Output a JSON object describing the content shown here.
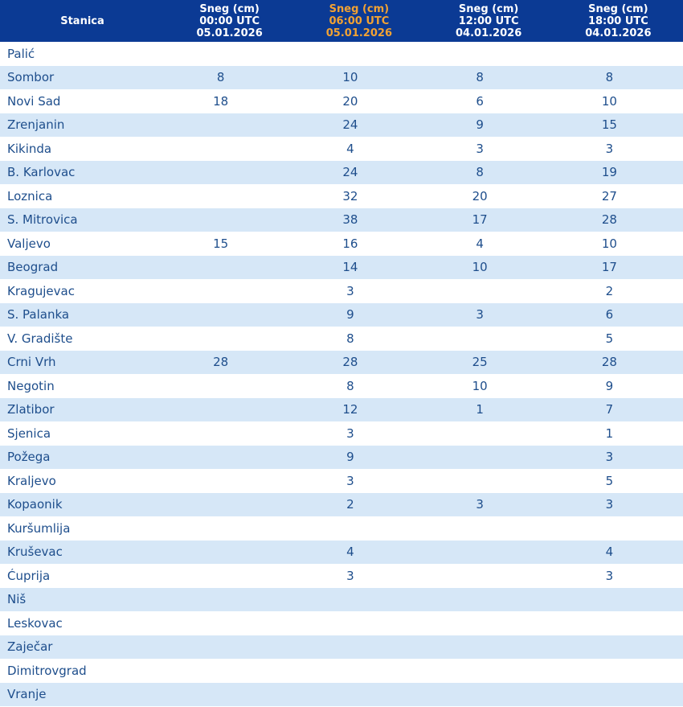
{
  "chart_data": {
    "type": "table",
    "units": "cm",
    "station_header": "Stanica",
    "highlight_color": "#f2a233",
    "header_background": "#0b3a94",
    "alt_row_color": "#d6e7f7",
    "text_color": "#1e4e8c",
    "columns": [
      {
        "label": "Sneg (cm)",
        "time": "00:00 UTC",
        "date": "05.01.2026",
        "highlighted": false
      },
      {
        "label": "Sneg (cm)",
        "time": "06:00 UTC",
        "date": "05.01.2026",
        "highlighted": true
      },
      {
        "label": "Sneg (cm)",
        "time": "12:00 UTC",
        "date": "04.01.2026",
        "highlighted": false
      },
      {
        "label": "Sneg (cm)",
        "time": "18:00 UTC",
        "date": "04.01.2026",
        "highlighted": false
      }
    ],
    "rows": [
      {
        "station": "Palić",
        "values": [
          null,
          null,
          null,
          null
        ]
      },
      {
        "station": "Sombor",
        "values": [
          8,
          10,
          8,
          8
        ]
      },
      {
        "station": "Novi Sad",
        "values": [
          18,
          20,
          6,
          10
        ]
      },
      {
        "station": "Zrenjanin",
        "values": [
          null,
          24,
          9,
          15
        ]
      },
      {
        "station": "Kikinda",
        "values": [
          null,
          4,
          3,
          3
        ]
      },
      {
        "station": "B. Karlovac",
        "values": [
          null,
          24,
          8,
          19
        ]
      },
      {
        "station": "Loznica",
        "values": [
          null,
          32,
          20,
          27
        ]
      },
      {
        "station": "S. Mitrovica",
        "values": [
          null,
          38,
          17,
          28
        ]
      },
      {
        "station": "Valjevo",
        "values": [
          15,
          16,
          4,
          10
        ]
      },
      {
        "station": "Beograd",
        "values": [
          null,
          14,
          10,
          17
        ]
      },
      {
        "station": "Kragujevac",
        "values": [
          null,
          3,
          null,
          2
        ]
      },
      {
        "station": "S. Palanka",
        "values": [
          null,
          9,
          3,
          6
        ]
      },
      {
        "station": "V. Gradište",
        "values": [
          null,
          8,
          null,
          5
        ]
      },
      {
        "station": "Crni Vrh",
        "values": [
          28,
          28,
          25,
          28
        ]
      },
      {
        "station": "Negotin",
        "values": [
          null,
          8,
          10,
          9
        ]
      },
      {
        "station": "Zlatibor",
        "values": [
          null,
          12,
          1,
          7
        ]
      },
      {
        "station": "Sjenica",
        "values": [
          null,
          3,
          null,
          1
        ]
      },
      {
        "station": "Požega",
        "values": [
          null,
          9,
          null,
          3
        ]
      },
      {
        "station": "Kraljevo",
        "values": [
          null,
          3,
          null,
          5
        ]
      },
      {
        "station": "Kopaonik",
        "values": [
          null,
          2,
          3,
          3
        ]
      },
      {
        "station": "Kuršumlija",
        "values": [
          null,
          null,
          null,
          null
        ]
      },
      {
        "station": "Kruševac",
        "values": [
          null,
          4,
          null,
          4
        ]
      },
      {
        "station": "Ćuprija",
        "values": [
          null,
          3,
          null,
          3
        ]
      },
      {
        "station": "Niš",
        "values": [
          null,
          null,
          null,
          null
        ]
      },
      {
        "station": "Leskovac",
        "values": [
          null,
          null,
          null,
          null
        ]
      },
      {
        "station": "Zaječar",
        "values": [
          null,
          null,
          null,
          null
        ]
      },
      {
        "station": "Dimitrovgrad",
        "values": [
          null,
          null,
          null,
          null
        ]
      },
      {
        "station": "Vranje",
        "values": [
          null,
          null,
          null,
          null
        ]
      }
    ]
  }
}
